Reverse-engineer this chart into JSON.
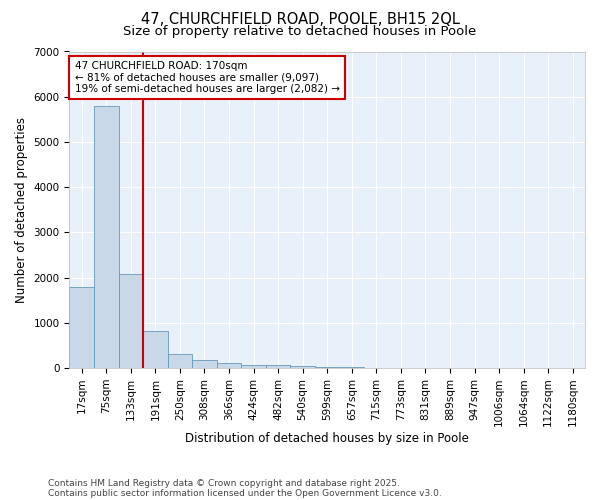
{
  "title_line1": "47, CHURCHFIELD ROAD, POOLE, BH15 2QL",
  "title_line2": "Size of property relative to detached houses in Poole",
  "xlabel": "Distribution of detached houses by size in Poole",
  "ylabel": "Number of detached properties",
  "bin_labels": [
    "17sqm",
    "75sqm",
    "133sqm",
    "191sqm",
    "250sqm",
    "308sqm",
    "366sqm",
    "424sqm",
    "482sqm",
    "540sqm",
    "599sqm",
    "657sqm",
    "715sqm",
    "773sqm",
    "831sqm",
    "889sqm",
    "947sqm",
    "1006sqm",
    "1064sqm",
    "1122sqm",
    "1180sqm"
  ],
  "bar_heights": [
    1800,
    5800,
    2080,
    820,
    320,
    175,
    100,
    70,
    55,
    45,
    30,
    20,
    10,
    5,
    3,
    2,
    2,
    1,
    1,
    1,
    0
  ],
  "bar_color": "#c8d8e8",
  "bar_edge_color": "#6699bb",
  "vline_index": 3,
  "vline_color": "#cc0000",
  "annotation_text": "47 CHURCHFIELD ROAD: 170sqm\n← 81% of detached houses are smaller (9,097)\n19% of semi-detached houses are larger (2,082) →",
  "annotation_box_color": "#cc0000",
  "ylim": [
    0,
    7000
  ],
  "yticks": [
    0,
    1000,
    2000,
    3000,
    4000,
    5000,
    6000,
    7000
  ],
  "background_color": "#e8f0fa",
  "grid_color": "#ffffff",
  "footer_line1": "Contains HM Land Registry data © Crown copyright and database right 2025.",
  "footer_line2": "Contains public sector information licensed under the Open Government Licence v3.0.",
  "title_fontsize": 10.5,
  "subtitle_fontsize": 9.5,
  "axis_label_fontsize": 8.5,
  "tick_fontsize": 7.5,
  "annotation_fontsize": 7.5,
  "footer_fontsize": 6.5
}
